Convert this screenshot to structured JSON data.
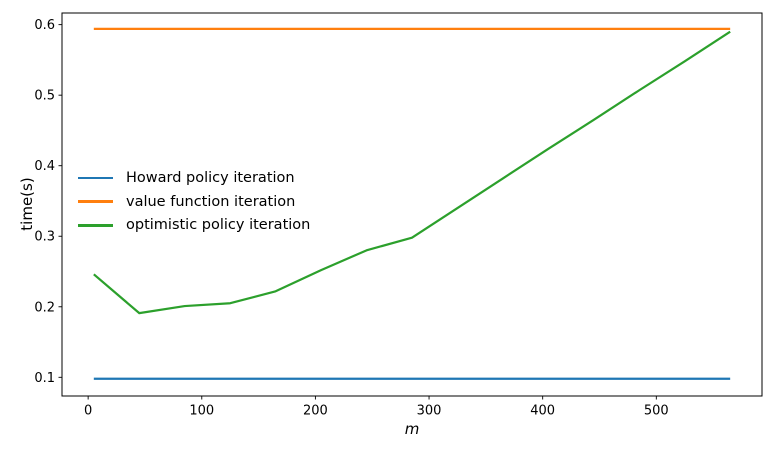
{
  "chart_data": {
    "type": "line",
    "title": "",
    "xlabel": "m",
    "ylabel": "time(s)",
    "x": [
      5,
      45,
      85,
      125,
      165,
      205,
      245,
      285,
      325,
      365,
      405,
      445,
      485,
      525,
      565
    ],
    "series": [
      {
        "name": "Howard policy iteration",
        "color": "#1f77b4",
        "values": [
          0.098,
          0.098,
          0.098,
          0.098,
          0.098,
          0.098,
          0.098,
          0.098,
          0.098,
          0.098,
          0.098,
          0.098,
          0.098,
          0.098,
          0.098
        ]
      },
      {
        "name": "value function iteration",
        "color": "#ff7f0e",
        "values": [
          0.594,
          0.594,
          0.594,
          0.594,
          0.594,
          0.594,
          0.594,
          0.594,
          0.594,
          0.594,
          0.594,
          0.594,
          0.594,
          0.594,
          0.594
        ]
      },
      {
        "name": "optimistic policy iteration",
        "color": "#2ca02c",
        "values": [
          0.246,
          0.191,
          0.201,
          0.205,
          0.222,
          0.252,
          0.28,
          0.298,
          0.34,
          0.382,
          0.424,
          0.465,
          0.507,
          0.548,
          0.59
        ]
      }
    ],
    "xlim": [
      -23,
      593
    ],
    "ylim": [
      0.0735,
      0.6165
    ],
    "xticks": [
      0,
      100,
      200,
      300,
      400,
      500
    ],
    "yticks": [
      0.1,
      0.2,
      0.3,
      0.4,
      0.5,
      0.6
    ],
    "grid": false,
    "legend_position": "center left",
    "legend_frame": false,
    "axis_color": "#000000",
    "background": "#ffffff",
    "line_width": 2.2
  }
}
